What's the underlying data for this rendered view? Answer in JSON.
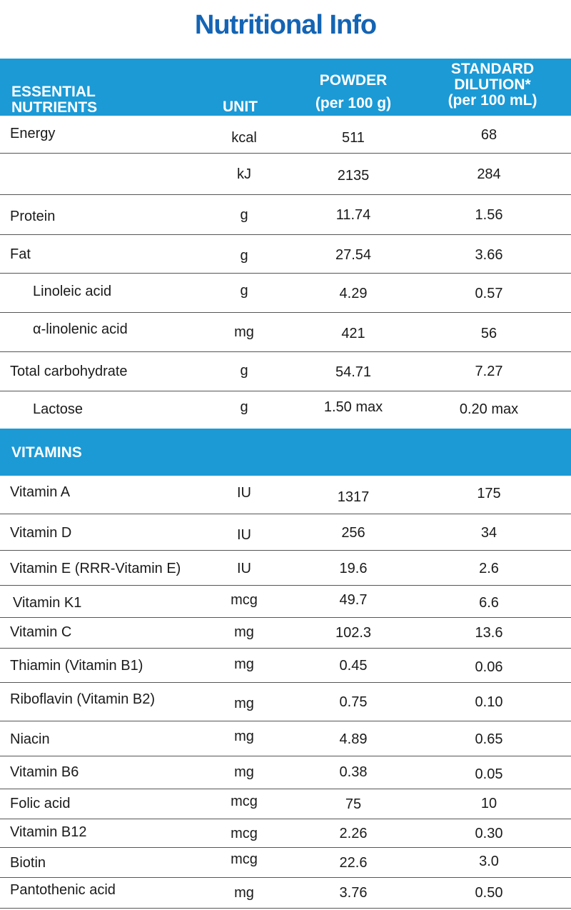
{
  "title": "Nutritional Info",
  "header": {
    "col1_line1": "ESSENTIAL",
    "col1_line2": "NUTRIENTS",
    "col2": "UNIT",
    "col3_line1": "POWDER",
    "col3_line2": "(per 100 g)",
    "col4_line1": "STANDARD",
    "col4_line2": "DILUTION*",
    "col4_line3": "(per 100 mL)"
  },
  "nutrients": [
    {
      "name": "Energy",
      "unit": "kcal",
      "powder": "511",
      "dilution": "68"
    },
    {
      "name": "",
      "unit": "kJ",
      "powder": "2135",
      "dilution": "284"
    },
    {
      "name": "Protein",
      "unit": "g",
      "powder": "11.74",
      "dilution": "1.56"
    },
    {
      "name": "Fat",
      "unit": "g",
      "powder": "27.54",
      "dilution": "3.66"
    },
    {
      "name": "Linoleic acid",
      "unit": "g",
      "powder": "4.29",
      "dilution": "0.57"
    },
    {
      "name": "α-linolenic acid",
      "unit": "mg",
      "powder": "421",
      "dilution": "56"
    },
    {
      "name": "Total carbohydrate",
      "unit": "g",
      "powder": "54.71",
      "dilution": "7.27"
    },
    {
      "name": "Lactose",
      "unit": "g",
      "powder": "1.50 max",
      "dilution": "0.20 max"
    }
  ],
  "vitamins_header": "VITAMINS",
  "vitamins": [
    {
      "name": "Vitamin A",
      "unit": "IU",
      "powder": "1317",
      "dilution": "175"
    },
    {
      "name": "Vitamin D",
      "unit": "IU",
      "powder": "256",
      "dilution": "34"
    },
    {
      "name": "Vitamin E (RRR-Vitamin E)",
      "unit": "IU",
      "powder": "19.6",
      "dilution": "2.6"
    },
    {
      "name": "Vitamin K1",
      "unit": "mcg",
      "powder": "49.7",
      "dilution": "6.6"
    },
    {
      "name": "Vitamin C",
      "unit": "mg",
      "powder": "102.3",
      "dilution": "13.6"
    },
    {
      "name": "Thiamin (Vitamin B1)",
      "unit": "mg",
      "powder": "0.45",
      "dilution": "0.06"
    },
    {
      "name": "Riboflavin (Vitamin B2)",
      "unit": "mg",
      "powder": "0.75",
      "dilution": "0.10"
    },
    {
      "name": "Niacin",
      "unit": "mg",
      "powder": "4.89",
      "dilution": "0.65"
    },
    {
      "name": "Vitamin B6",
      "unit": "mg",
      "powder": "0.38",
      "dilution": "0.05"
    },
    {
      "name": "Folic acid",
      "unit": "mcg",
      "powder": "75",
      "dilution": "10"
    },
    {
      "name": "Vitamin B12",
      "unit": "mcg",
      "powder": "2.26",
      "dilution": "0.30"
    },
    {
      "name": "Biotin",
      "unit": "mcg",
      "powder": "22.6",
      "dilution": "3.0"
    },
    {
      "name": "Pantothenic acid",
      "unit": "mg",
      "powder": "3.76",
      "dilution": "0.50"
    }
  ]
}
